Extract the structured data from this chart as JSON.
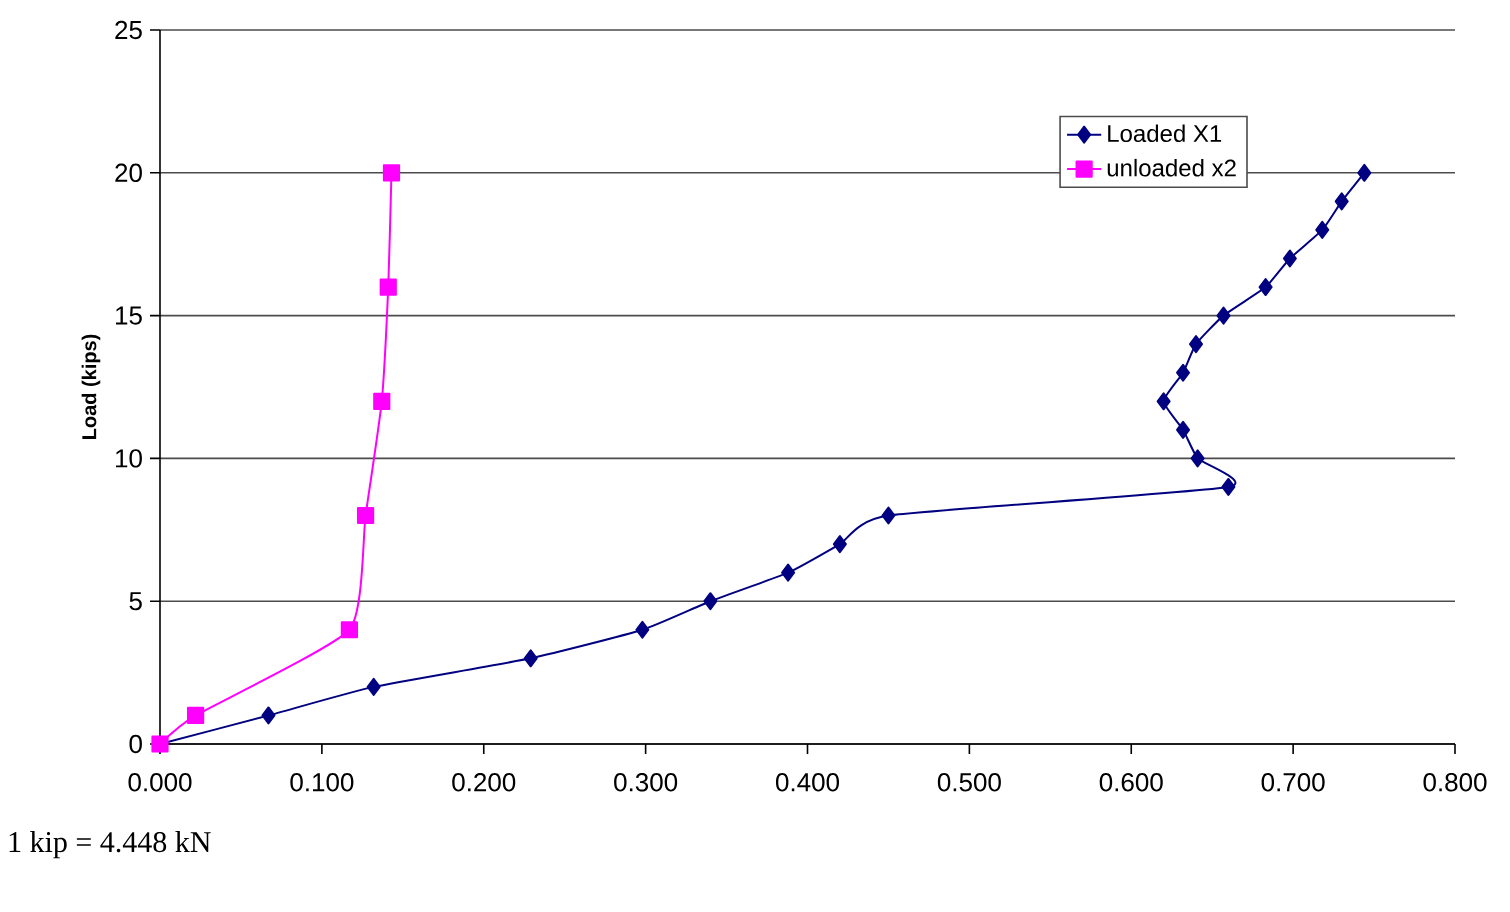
{
  "chart_data": {
    "type": "line",
    "ylabel": "Load (kips)",
    "xlim": [
      0,
      0.8
    ],
    "ylim": [
      0,
      25
    ],
    "xticks": [
      {
        "value": 0,
        "label": "0.000"
      },
      {
        "value": 0.1,
        "label": "0.100"
      },
      {
        "value": 0.2,
        "label": "0.200"
      },
      {
        "value": 0.3,
        "label": "0.300"
      },
      {
        "value": 0.4,
        "label": "0.400"
      },
      {
        "value": 0.5,
        "label": "0.500"
      },
      {
        "value": 0.6,
        "label": "0.600"
      },
      {
        "value": 0.7,
        "label": "0.700"
      },
      {
        "value": 0.8,
        "label": "0.800"
      }
    ],
    "yticks": [
      0,
      5,
      10,
      15,
      20,
      25
    ],
    "grid": "y",
    "legend": "top right",
    "series": [
      {
        "name": "Loaded  X1",
        "color": "#000080",
        "marker": "diamond",
        "x": [
          0,
          0.067,
          0.132,
          0.229,
          0.298,
          0.34,
          0.388,
          0.42,
          0.45,
          0.66,
          0.641,
          0.632,
          0.62,
          0.632,
          0.64,
          0.657,
          0.683,
          0.698,
          0.718,
          0.73,
          0.744
        ],
        "values": [
          0,
          1,
          2,
          3,
          4,
          5,
          6,
          7,
          8,
          9,
          10,
          11,
          12,
          13,
          14,
          15,
          16,
          17,
          18,
          19,
          20
        ]
      },
      {
        "name": "unloaded x2",
        "color": "#ff00ff",
        "marker": "square",
        "x": [
          0,
          0.022,
          0.117,
          0.127,
          0.137,
          0.141,
          0.143
        ],
        "values": [
          0,
          1,
          4,
          8,
          12,
          16,
          20
        ]
      }
    ],
    "annotations": [
      "1 kip = 4.448 kN"
    ]
  }
}
